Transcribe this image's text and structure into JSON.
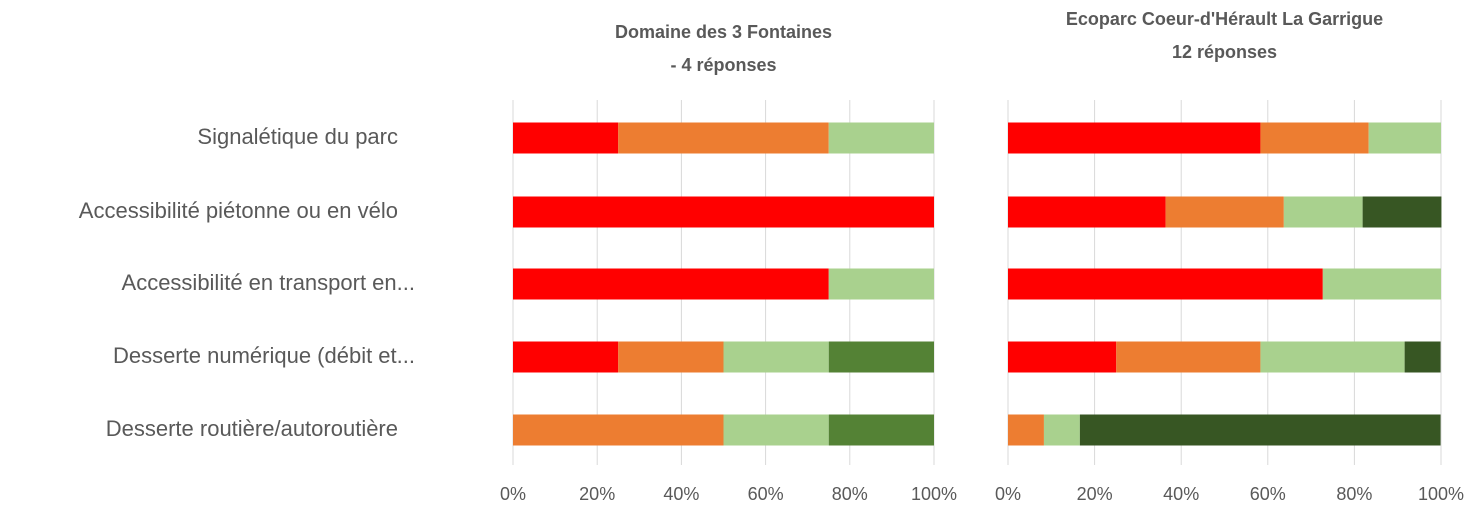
{
  "chart_data": [
    {
      "type": "bar",
      "orientation": "horizontal",
      "stacked": true,
      "title": "Domaine des 3 Fontaines",
      "subtitle": "- 4 réponses",
      "categories": [
        "Signalétique du parc",
        "Accessibilité piétonne ou en vélo",
        "Accessibilité en transport en...",
        "Desserte numérique (débit et...",
        "Desserte routière/autoroutière"
      ],
      "series": [
        {
          "color": "#ff0000",
          "values": [
            25,
            100,
            75,
            25,
            0
          ]
        },
        {
          "color": "#ed7d31",
          "values": [
            50,
            0,
            0,
            25,
            50
          ]
        },
        {
          "color": "#a9d18e",
          "values": [
            25,
            0,
            25,
            25,
            25
          ]
        },
        {
          "color": "#548235",
          "values": [
            0,
            0,
            0,
            25,
            25
          ]
        }
      ],
      "xlim": [
        0,
        100
      ],
      "xticks": [
        {
          "value": 0,
          "label": "0%"
        },
        {
          "value": 20,
          "label": "20%"
        },
        {
          "value": 40,
          "label": "40%"
        },
        {
          "value": 60,
          "label": "60%"
        },
        {
          "value": 80,
          "label": "80%"
        },
        {
          "value": 100,
          "label": "100%"
        }
      ],
      "grid": true
    },
    {
      "type": "bar",
      "orientation": "horizontal",
      "stacked": true,
      "title": "Ecoparc Coeur-d'Hérault La Garrigue",
      "subtitle": "12 réponses",
      "series": [
        {
          "color": "#ff0000",
          "values": [
            58.3,
            36.4,
            72.7,
            25,
            0
          ]
        },
        {
          "color": "#ed7d31",
          "values": [
            25,
            27.3,
            0,
            33.3,
            8.3
          ]
        },
        {
          "color": "#a9d18e",
          "values": [
            16.7,
            18.2,
            27.3,
            33.3,
            8.3
          ]
        },
        {
          "color": "#375623",
          "values": [
            0,
            18.2,
            0,
            8.3,
            83.3
          ]
        }
      ],
      "xlim": [
        0,
        100
      ],
      "xticks": [
        {
          "value": 0,
          "label": "0%"
        },
        {
          "value": 20,
          "label": "20%"
        },
        {
          "value": 40,
          "label": "40%"
        },
        {
          "value": 60,
          "label": "60%"
        },
        {
          "value": 80,
          "label": "80%"
        },
        {
          "value": 100,
          "label": "100%"
        }
      ],
      "grid": true
    }
  ]
}
